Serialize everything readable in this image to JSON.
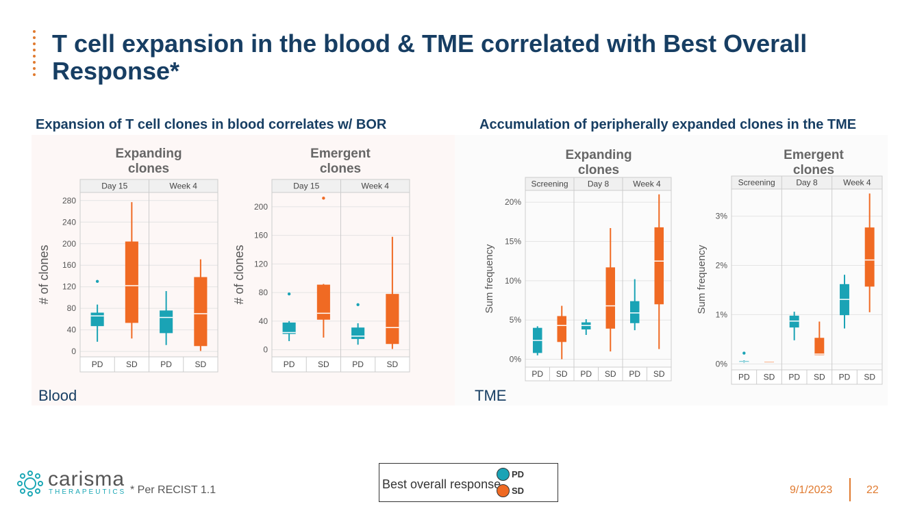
{
  "title": "T cell expansion in the blood & TME correlated with Best Overall Response*",
  "left_subtitle": "Expansion of T cell clones in blood correlates w/ BOR",
  "right_subtitle": "Accumulation of peripherally expanded clones in the TME",
  "left_label": "Blood",
  "right_label": "TME",
  "footnote": "* Per RECIST 1.1",
  "logo": {
    "name": "carisma",
    "sub": "THERAPEUTICS"
  },
  "legend": {
    "title": "Best overall response",
    "pd": "PD",
    "sd": "SD"
  },
  "date": "9/1/2023",
  "page_number": "22",
  "colors": {
    "PD": "#1aa3b5",
    "SD": "#f06a23",
    "title": "#173e63",
    "accent": "#e07a2f"
  },
  "chart_data": [
    {
      "type": "box",
      "title_lines": [
        "Expanding",
        "clones"
      ],
      "ylabel": "# of clones",
      "ylim": [
        -10,
        295
      ],
      "yticks": [
        0,
        40,
        80,
        120,
        160,
        200,
        240,
        280
      ],
      "tick_format": "int",
      "facets": [
        "Day 15",
        "Week 4"
      ],
      "groups": [
        "PD",
        "SD"
      ],
      "boxes": [
        {
          "facet": "Day 15",
          "group": "PD",
          "min": 18,
          "q1": 47,
          "median": 66,
          "q3": 72,
          "max": 87,
          "outliers": [
            130
          ]
        },
        {
          "facet": "Day 15",
          "group": "SD",
          "min": 24,
          "q1": 53,
          "median": 122,
          "q3": 204,
          "max": 277,
          "outliers": []
        },
        {
          "facet": "Week 4",
          "group": "PD",
          "min": 12,
          "q1": 34,
          "median": 63,
          "q3": 76,
          "max": 112,
          "outliers": []
        },
        {
          "facet": "Week 4",
          "group": "SD",
          "min": 1,
          "q1": 10,
          "median": 70,
          "q3": 138,
          "max": 171,
          "outliers": []
        }
      ]
    },
    {
      "type": "box",
      "title_lines": [
        "Emergent",
        "clones"
      ],
      "ylabel": "# of clones",
      "ylim": [
        -10,
        220
      ],
      "yticks": [
        0,
        40,
        80,
        120,
        160,
        200
      ],
      "tick_format": "int",
      "facets": [
        "Day 15",
        "Week 4"
      ],
      "groups": [
        "PD",
        "SD"
      ],
      "boxes": [
        {
          "facet": "Day 15",
          "group": "PD",
          "min": 12,
          "q1": 22,
          "median": 24,
          "q3": 38,
          "max": 40,
          "outliers": [
            78
          ]
        },
        {
          "facet": "Day 15",
          "group": "SD",
          "min": 17,
          "q1": 42,
          "median": 51,
          "q3": 91,
          "max": 92,
          "outliers": [
            212
          ]
        },
        {
          "facet": "Week 4",
          "group": "PD",
          "min": 7,
          "q1": 15,
          "median": 19,
          "q3": 31,
          "max": 37,
          "outliers": [
            63
          ]
        },
        {
          "facet": "Week 4",
          "group": "SD",
          "min": 1,
          "q1": 8,
          "median": 31,
          "q3": 78,
          "max": 158,
          "outliers": []
        }
      ]
    },
    {
      "type": "box",
      "title_lines": [
        "Expanding",
        "clones"
      ],
      "ylabel": "Sum frequency",
      "ylim": [
        -1,
        21.5
      ],
      "yticks": [
        0,
        5,
        10,
        15,
        20
      ],
      "tick_format": "pct",
      "facets": [
        "Screening",
        "Day 8",
        "Week 4"
      ],
      "groups": [
        "PD",
        "SD"
      ],
      "boxes": [
        {
          "facet": "Screening",
          "group": "PD",
          "min": 0.5,
          "q1": 0.8,
          "median": 2.4,
          "q3": 4.0,
          "max": 4.2,
          "outliers": []
        },
        {
          "facet": "Screening",
          "group": "SD",
          "min": 0.0,
          "q1": 2.2,
          "median": 4.3,
          "q3": 5.5,
          "max": 6.8,
          "outliers": []
        },
        {
          "facet": "Day 8",
          "group": "PD",
          "min": 3.1,
          "q1": 3.8,
          "median": 4.3,
          "q3": 4.7,
          "max": 5.1,
          "outliers": []
        },
        {
          "facet": "Day 8",
          "group": "SD",
          "min": 1.0,
          "q1": 3.9,
          "median": 6.8,
          "q3": 11.7,
          "max": 16.7,
          "outliers": []
        },
        {
          "facet": "Week 4",
          "group": "PD",
          "min": 3.7,
          "q1": 4.6,
          "median": 5.9,
          "q3": 7.4,
          "max": 10.2,
          "outliers": []
        },
        {
          "facet": "Week 4",
          "group": "SD",
          "min": 1.3,
          "q1": 7.0,
          "median": 12.5,
          "q3": 16.8,
          "max": 21.0,
          "outliers": []
        }
      ]
    },
    {
      "type": "box",
      "title_lines": [
        "Emergent",
        "clones"
      ],
      "ylabel": "Sum frequency",
      "ylim": [
        -0.12,
        3.55
      ],
      "yticks": [
        0,
        1,
        2,
        3
      ],
      "tick_format": "pct",
      "facets": [
        "Screening",
        "Day 8",
        "Week 4"
      ],
      "groups": [
        "PD",
        "SD"
      ],
      "boxes": [
        {
          "facet": "Screening",
          "group": "PD",
          "min": 0.02,
          "q1": 0.03,
          "median": 0.04,
          "q3": 0.06,
          "max": 0.07,
          "outliers": [
            0.22
          ]
        },
        {
          "facet": "Screening",
          "group": "SD",
          "min": 0.05,
          "q1": 0.05,
          "median": 0.05,
          "q3": 0.06,
          "max": 0.06,
          "outliers": []
        },
        {
          "facet": "Day 8",
          "group": "PD",
          "min": 0.48,
          "q1": 0.74,
          "median": 0.87,
          "q3": 0.98,
          "max": 1.06,
          "outliers": []
        },
        {
          "facet": "Day 8",
          "group": "SD",
          "min": 0.18,
          "q1": 0.18,
          "median": 0.2,
          "q3": 0.53,
          "max": 0.86,
          "outliers": []
        },
        {
          "facet": "Week 4",
          "group": "PD",
          "min": 0.72,
          "q1": 0.99,
          "median": 1.31,
          "q3": 1.62,
          "max": 1.81,
          "outliers": []
        },
        {
          "facet": "Week 4",
          "group": "SD",
          "min": 1.05,
          "q1": 1.57,
          "median": 2.11,
          "q3": 2.77,
          "max": 3.46,
          "outliers": []
        }
      ]
    }
  ]
}
